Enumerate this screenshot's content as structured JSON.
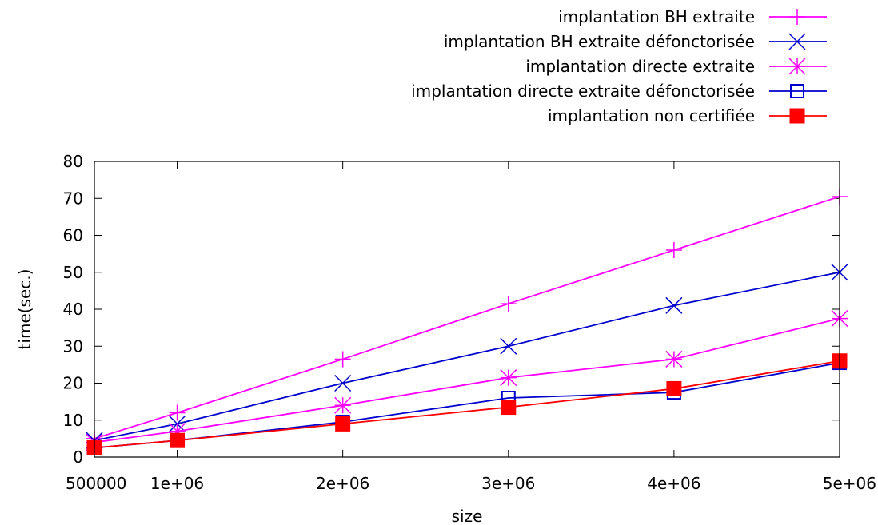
{
  "chart_data": {
    "type": "line",
    "xlabel": "size",
    "ylabel": "time(sec.)",
    "xlim": [
      500000,
      5000000
    ],
    "ylim": [
      0,
      80
    ],
    "grid": false,
    "legend_position": "top-right",
    "x_ticks": [
      {
        "value": 500000,
        "label": "500000"
      },
      {
        "value": 1000000,
        "label": "1e+06"
      },
      {
        "value": 2000000,
        "label": "2e+06"
      },
      {
        "value": 3000000,
        "label": "3e+06"
      },
      {
        "value": 4000000,
        "label": "4e+06"
      },
      {
        "value": 5000000,
        "label": "5e+06"
      }
    ],
    "y_ticks": [
      {
        "value": 0,
        "label": "0"
      },
      {
        "value": 10,
        "label": "10"
      },
      {
        "value": 20,
        "label": "20"
      },
      {
        "value": 30,
        "label": "30"
      },
      {
        "value": 40,
        "label": "40"
      },
      {
        "value": 50,
        "label": "50"
      },
      {
        "value": 60,
        "label": "60"
      },
      {
        "value": 70,
        "label": "70"
      },
      {
        "value": 80,
        "label": "80"
      }
    ],
    "x": [
      500000,
      1000000,
      2000000,
      3000000,
      4000000,
      5000000
    ],
    "series": [
      {
        "name": "implantation BH extraite",
        "color": "#ff00ff",
        "marker": "plus",
        "values": [
          5.0,
          12.0,
          26.5,
          41.5,
          56.0,
          70.5
        ]
      },
      {
        "name": "implantation BH extraite défonctorisée",
        "color": "#0000cc",
        "marker": "cross",
        "values": [
          4.5,
          9.0,
          20.0,
          30.0,
          41.0,
          50.0
        ]
      },
      {
        "name": "implantation directe extraite",
        "color": "#ff00ff",
        "marker": "star",
        "values": [
          4.0,
          7.0,
          14.0,
          21.5,
          26.5,
          37.5
        ]
      },
      {
        "name": "implantation directe extraite défonctorisée",
        "color": "#0000cc",
        "marker": "open-square",
        "values": [
          2.5,
          4.5,
          9.5,
          16.0,
          17.5,
          25.5
        ]
      },
      {
        "name": "implantation non certifiée",
        "color": "#ff0000",
        "marker": "filled-square",
        "values": [
          2.5,
          4.5,
          9.0,
          13.5,
          18.5,
          26.0
        ]
      }
    ]
  }
}
